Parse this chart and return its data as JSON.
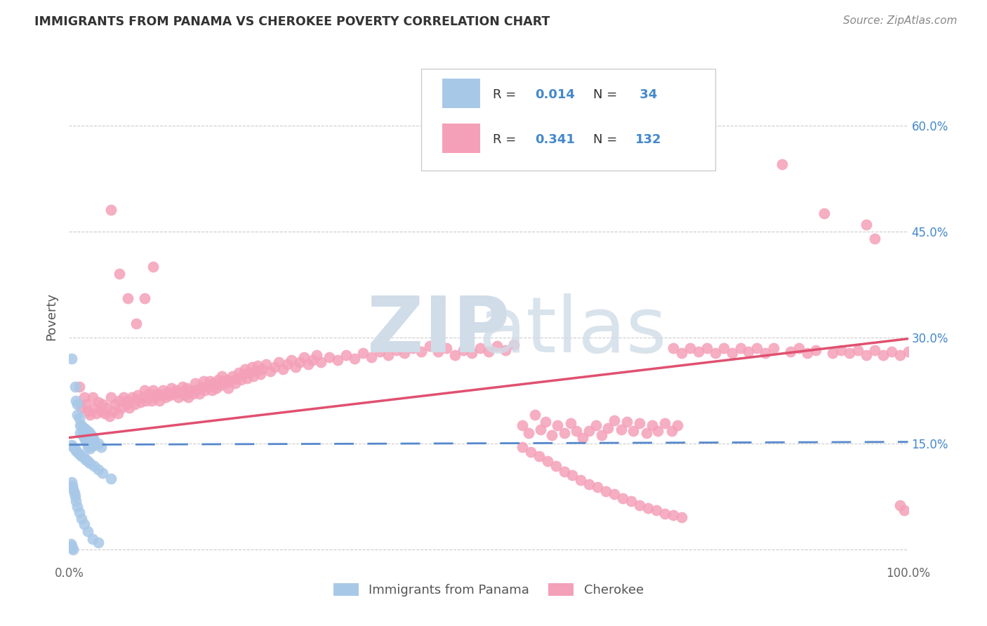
{
  "title": "IMMIGRANTS FROM PANAMA VS CHEROKEE POVERTY CORRELATION CHART",
  "source": "Source: ZipAtlas.com",
  "ylabel": "Poverty",
  "xlim": [
    0,
    1.0
  ],
  "ylim": [
    -0.02,
    0.68
  ],
  "color_panama": "#a8c8e8",
  "color_cherokee": "#f4a0b8",
  "color_panama_line": "#5588cc",
  "color_cherokee_line": "#e05070",
  "color_blue_text": "#4488cc",
  "watermark_color": "#d0dce8",
  "background_color": "#ffffff",
  "pan_line_x": [
    0.0,
    1.0
  ],
  "pan_line_y": [
    0.148,
    0.152
  ],
  "che_line_x": [
    0.0,
    1.0
  ],
  "che_line_y": [
    0.158,
    0.298
  ],
  "panama_points": [
    [
      0.003,
      0.27
    ],
    [
      0.007,
      0.23
    ],
    [
      0.008,
      0.21
    ],
    [
      0.01,
      0.205
    ],
    [
      0.01,
      0.19
    ],
    [
      0.012,
      0.185
    ],
    [
      0.013,
      0.175
    ],
    [
      0.013,
      0.165
    ],
    [
      0.015,
      0.175
    ],
    [
      0.016,
      0.168
    ],
    [
      0.016,
      0.162
    ],
    [
      0.018,
      0.172
    ],
    [
      0.018,
      0.165
    ],
    [
      0.018,
      0.158
    ],
    [
      0.02,
      0.17
    ],
    [
      0.02,
      0.162
    ],
    [
      0.02,
      0.158
    ],
    [
      0.02,
      0.153
    ],
    [
      0.022,
      0.168
    ],
    [
      0.022,
      0.16
    ],
    [
      0.022,
      0.155
    ],
    [
      0.022,
      0.15
    ],
    [
      0.022,
      0.145
    ],
    [
      0.025,
      0.165
    ],
    [
      0.025,
      0.158
    ],
    [
      0.025,
      0.15
    ],
    [
      0.025,
      0.143
    ],
    [
      0.028,
      0.16
    ],
    [
      0.028,
      0.153
    ],
    [
      0.028,
      0.147
    ],
    [
      0.03,
      0.155
    ],
    [
      0.03,
      0.148
    ],
    [
      0.035,
      0.15
    ],
    [
      0.038,
      0.145
    ],
    [
      0.003,
      0.148
    ],
    [
      0.005,
      0.145
    ],
    [
      0.007,
      0.143
    ],
    [
      0.008,
      0.14
    ],
    [
      0.01,
      0.138
    ],
    [
      0.012,
      0.135
    ],
    [
      0.015,
      0.132
    ],
    [
      0.018,
      0.13
    ],
    [
      0.02,
      0.127
    ],
    [
      0.022,
      0.125
    ],
    [
      0.025,
      0.122
    ],
    [
      0.03,
      0.118
    ],
    [
      0.035,
      0.113
    ],
    [
      0.04,
      0.108
    ],
    [
      0.05,
      0.1
    ],
    [
      0.003,
      0.095
    ],
    [
      0.004,
      0.09
    ],
    [
      0.005,
      0.085
    ],
    [
      0.006,
      0.08
    ],
    [
      0.007,
      0.075
    ],
    [
      0.008,
      0.068
    ],
    [
      0.01,
      0.06
    ],
    [
      0.012,
      0.052
    ],
    [
      0.015,
      0.043
    ],
    [
      0.018,
      0.035
    ],
    [
      0.022,
      0.025
    ],
    [
      0.028,
      0.015
    ],
    [
      0.035,
      0.01
    ],
    [
      0.002,
      0.008
    ],
    [
      0.003,
      0.005
    ],
    [
      0.004,
      0.002
    ],
    [
      0.005,
      0.0
    ]
  ],
  "cherokee_points": [
    [
      0.012,
      0.23
    ],
    [
      0.015,
      0.2
    ],
    [
      0.018,
      0.215
    ],
    [
      0.02,
      0.205
    ],
    [
      0.022,
      0.195
    ],
    [
      0.025,
      0.19
    ],
    [
      0.028,
      0.215
    ],
    [
      0.03,
      0.2
    ],
    [
      0.032,
      0.192
    ],
    [
      0.035,
      0.208
    ],
    [
      0.038,
      0.195
    ],
    [
      0.04,
      0.205
    ],
    [
      0.042,
      0.192
    ],
    [
      0.045,
      0.2
    ],
    [
      0.048,
      0.188
    ],
    [
      0.05,
      0.215
    ],
    [
      0.052,
      0.195
    ],
    [
      0.055,
      0.205
    ],
    [
      0.058,
      0.192
    ],
    [
      0.06,
      0.21
    ],
    [
      0.062,
      0.2
    ],
    [
      0.065,
      0.215
    ],
    [
      0.068,
      0.205
    ],
    [
      0.07,
      0.21
    ],
    [
      0.072,
      0.2
    ],
    [
      0.075,
      0.215
    ],
    [
      0.078,
      0.205
    ],
    [
      0.08,
      0.212
    ],
    [
      0.082,
      0.218
    ],
    [
      0.085,
      0.208
    ],
    [
      0.088,
      0.215
    ],
    [
      0.09,
      0.225
    ],
    [
      0.092,
      0.21
    ],
    [
      0.095,
      0.22
    ],
    [
      0.098,
      0.21
    ],
    [
      0.1,
      0.225
    ],
    [
      0.102,
      0.215
    ],
    [
      0.105,
      0.22
    ],
    [
      0.108,
      0.21
    ],
    [
      0.11,
      0.218
    ],
    [
      0.112,
      0.225
    ],
    [
      0.115,
      0.215
    ],
    [
      0.118,
      0.222
    ],
    [
      0.12,
      0.218
    ],
    [
      0.122,
      0.228
    ],
    [
      0.125,
      0.22
    ],
    [
      0.128,
      0.225
    ],
    [
      0.13,
      0.215
    ],
    [
      0.132,
      0.222
    ],
    [
      0.135,
      0.23
    ],
    [
      0.138,
      0.218
    ],
    [
      0.14,
      0.228
    ],
    [
      0.142,
      0.215
    ],
    [
      0.145,
      0.225
    ],
    [
      0.148,
      0.22
    ],
    [
      0.15,
      0.235
    ],
    [
      0.152,
      0.225
    ],
    [
      0.155,
      0.22
    ],
    [
      0.158,
      0.23
    ],
    [
      0.16,
      0.238
    ],
    [
      0.162,
      0.225
    ],
    [
      0.165,
      0.23
    ],
    [
      0.168,
      0.238
    ],
    [
      0.17,
      0.225
    ],
    [
      0.172,
      0.235
    ],
    [
      0.175,
      0.228
    ],
    [
      0.178,
      0.24
    ],
    [
      0.18,
      0.232
    ],
    [
      0.182,
      0.245
    ],
    [
      0.185,
      0.235
    ],
    [
      0.188,
      0.24
    ],
    [
      0.19,
      0.228
    ],
    [
      0.192,
      0.238
    ],
    [
      0.195,
      0.245
    ],
    [
      0.198,
      0.235
    ],
    [
      0.2,
      0.242
    ],
    [
      0.202,
      0.25
    ],
    [
      0.205,
      0.24
    ],
    [
      0.208,
      0.248
    ],
    [
      0.21,
      0.255
    ],
    [
      0.212,
      0.242
    ],
    [
      0.215,
      0.25
    ],
    [
      0.218,
      0.258
    ],
    [
      0.22,
      0.245
    ],
    [
      0.222,
      0.252
    ],
    [
      0.225,
      0.26
    ],
    [
      0.228,
      0.248
    ],
    [
      0.23,
      0.255
    ],
    [
      0.235,
      0.262
    ],
    [
      0.24,
      0.252
    ],
    [
      0.245,
      0.258
    ],
    [
      0.25,
      0.265
    ],
    [
      0.255,
      0.255
    ],
    [
      0.26,
      0.262
    ],
    [
      0.265,
      0.268
    ],
    [
      0.27,
      0.258
    ],
    [
      0.275,
      0.265
    ],
    [
      0.28,
      0.272
    ],
    [
      0.285,
      0.262
    ],
    [
      0.29,
      0.268
    ],
    [
      0.295,
      0.275
    ],
    [
      0.3,
      0.265
    ],
    [
      0.31,
      0.272
    ],
    [
      0.32,
      0.268
    ],
    [
      0.33,
      0.275
    ],
    [
      0.34,
      0.27
    ],
    [
      0.35,
      0.278
    ],
    [
      0.36,
      0.272
    ],
    [
      0.37,
      0.28
    ],
    [
      0.38,
      0.275
    ],
    [
      0.39,
      0.282
    ],
    [
      0.4,
      0.278
    ],
    [
      0.41,
      0.285
    ],
    [
      0.42,
      0.28
    ],
    [
      0.43,
      0.288
    ],
    [
      0.44,
      0.28
    ],
    [
      0.45,
      0.285
    ],
    [
      0.46,
      0.275
    ],
    [
      0.47,
      0.282
    ],
    [
      0.48,
      0.278
    ],
    [
      0.49,
      0.285
    ],
    [
      0.5,
      0.28
    ],
    [
      0.51,
      0.288
    ],
    [
      0.52,
      0.282
    ],
    [
      0.53,
      0.29
    ],
    [
      0.05,
      0.48
    ],
    [
      0.06,
      0.39
    ],
    [
      0.07,
      0.355
    ],
    [
      0.08,
      0.32
    ],
    [
      0.09,
      0.355
    ],
    [
      0.1,
      0.4
    ],
    [
      0.54,
      0.175
    ],
    [
      0.548,
      0.165
    ],
    [
      0.555,
      0.19
    ],
    [
      0.562,
      0.17
    ],
    [
      0.568,
      0.18
    ],
    [
      0.575,
      0.162
    ],
    [
      0.582,
      0.175
    ],
    [
      0.59,
      0.165
    ],
    [
      0.598,
      0.178
    ],
    [
      0.605,
      0.168
    ],
    [
      0.612,
      0.158
    ],
    [
      0.62,
      0.168
    ],
    [
      0.628,
      0.175
    ],
    [
      0.635,
      0.162
    ],
    [
      0.642,
      0.172
    ],
    [
      0.65,
      0.182
    ],
    [
      0.658,
      0.17
    ],
    [
      0.665,
      0.18
    ],
    [
      0.672,
      0.168
    ],
    [
      0.68,
      0.178
    ],
    [
      0.688,
      0.165
    ],
    [
      0.695,
      0.175
    ],
    [
      0.702,
      0.168
    ],
    [
      0.71,
      0.178
    ],
    [
      0.718,
      0.168
    ],
    [
      0.725,
      0.175
    ],
    [
      0.85,
      0.545
    ],
    [
      0.9,
      0.475
    ],
    [
      0.72,
      0.285
    ],
    [
      0.73,
      0.278
    ],
    [
      0.74,
      0.285
    ],
    [
      0.75,
      0.28
    ],
    [
      0.76,
      0.285
    ],
    [
      0.77,
      0.278
    ],
    [
      0.78,
      0.285
    ],
    [
      0.79,
      0.278
    ],
    [
      0.8,
      0.285
    ],
    [
      0.81,
      0.28
    ],
    [
      0.82,
      0.285
    ],
    [
      0.83,
      0.278
    ],
    [
      0.84,
      0.285
    ],
    [
      0.86,
      0.28
    ],
    [
      0.87,
      0.285
    ],
    [
      0.88,
      0.278
    ],
    [
      0.89,
      0.282
    ],
    [
      0.91,
      0.278
    ],
    [
      0.92,
      0.282
    ],
    [
      0.93,
      0.278
    ],
    [
      0.94,
      0.282
    ],
    [
      0.95,
      0.275
    ],
    [
      0.96,
      0.282
    ],
    [
      0.97,
      0.275
    ],
    [
      0.98,
      0.28
    ],
    [
      0.99,
      0.275
    ],
    [
      1.0,
      0.28
    ],
    [
      0.95,
      0.46
    ],
    [
      0.96,
      0.44
    ],
    [
      0.99,
      0.062
    ],
    [
      0.995,
      0.055
    ],
    [
      0.54,
      0.145
    ],
    [
      0.55,
      0.138
    ],
    [
      0.56,
      0.132
    ],
    [
      0.57,
      0.125
    ],
    [
      0.58,
      0.118
    ],
    [
      0.59,
      0.11
    ],
    [
      0.6,
      0.105
    ],
    [
      0.61,
      0.098
    ],
    [
      0.62,
      0.092
    ],
    [
      0.63,
      0.088
    ],
    [
      0.64,
      0.082
    ],
    [
      0.65,
      0.078
    ],
    [
      0.66,
      0.072
    ],
    [
      0.67,
      0.068
    ],
    [
      0.68,
      0.062
    ],
    [
      0.69,
      0.058
    ],
    [
      0.7,
      0.055
    ],
    [
      0.71,
      0.05
    ],
    [
      0.72,
      0.048
    ],
    [
      0.73,
      0.045
    ]
  ]
}
